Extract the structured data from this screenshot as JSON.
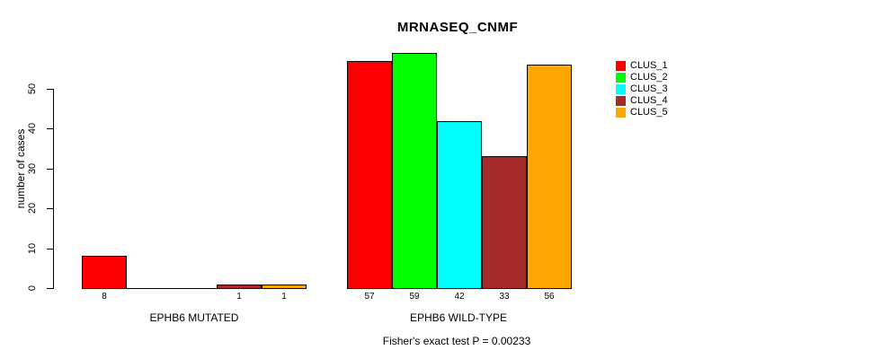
{
  "chart_data": {
    "type": "bar",
    "title": "MRNASEQ_CNMF",
    "ylabel": "number of cases",
    "xlabel": "",
    "caption": "Fisher's exact test P = 0.00233",
    "categories": [
      "EPHB6 MUTATED",
      "EPHB6 WILD-TYPE"
    ],
    "groups": [
      {
        "label": "EPHB6 MUTATED",
        "values": [
          8,
          0,
          0,
          1,
          1
        ]
      },
      {
        "label": "EPHB6 WILD-TYPE",
        "values": [
          57,
          59,
          42,
          33,
          56
        ]
      }
    ],
    "series": [
      {
        "name": "CLUS_1",
        "color": "#ff0000"
      },
      {
        "name": "CLUS_2",
        "color": "#00ff00"
      },
      {
        "name": "CLUS_3",
        "color": "#00ffff"
      },
      {
        "name": "CLUS_4",
        "color": "#a52a2a"
      },
      {
        "name": "CLUS_5",
        "color": "#ffa500"
      }
    ],
    "y_ticks": [
      0,
      10,
      20,
      30,
      40,
      50
    ],
    "ylim": [
      0,
      59
    ],
    "grid": false,
    "legend_position": "right",
    "bar_value_labels": "shown under each nonzero bar"
  }
}
